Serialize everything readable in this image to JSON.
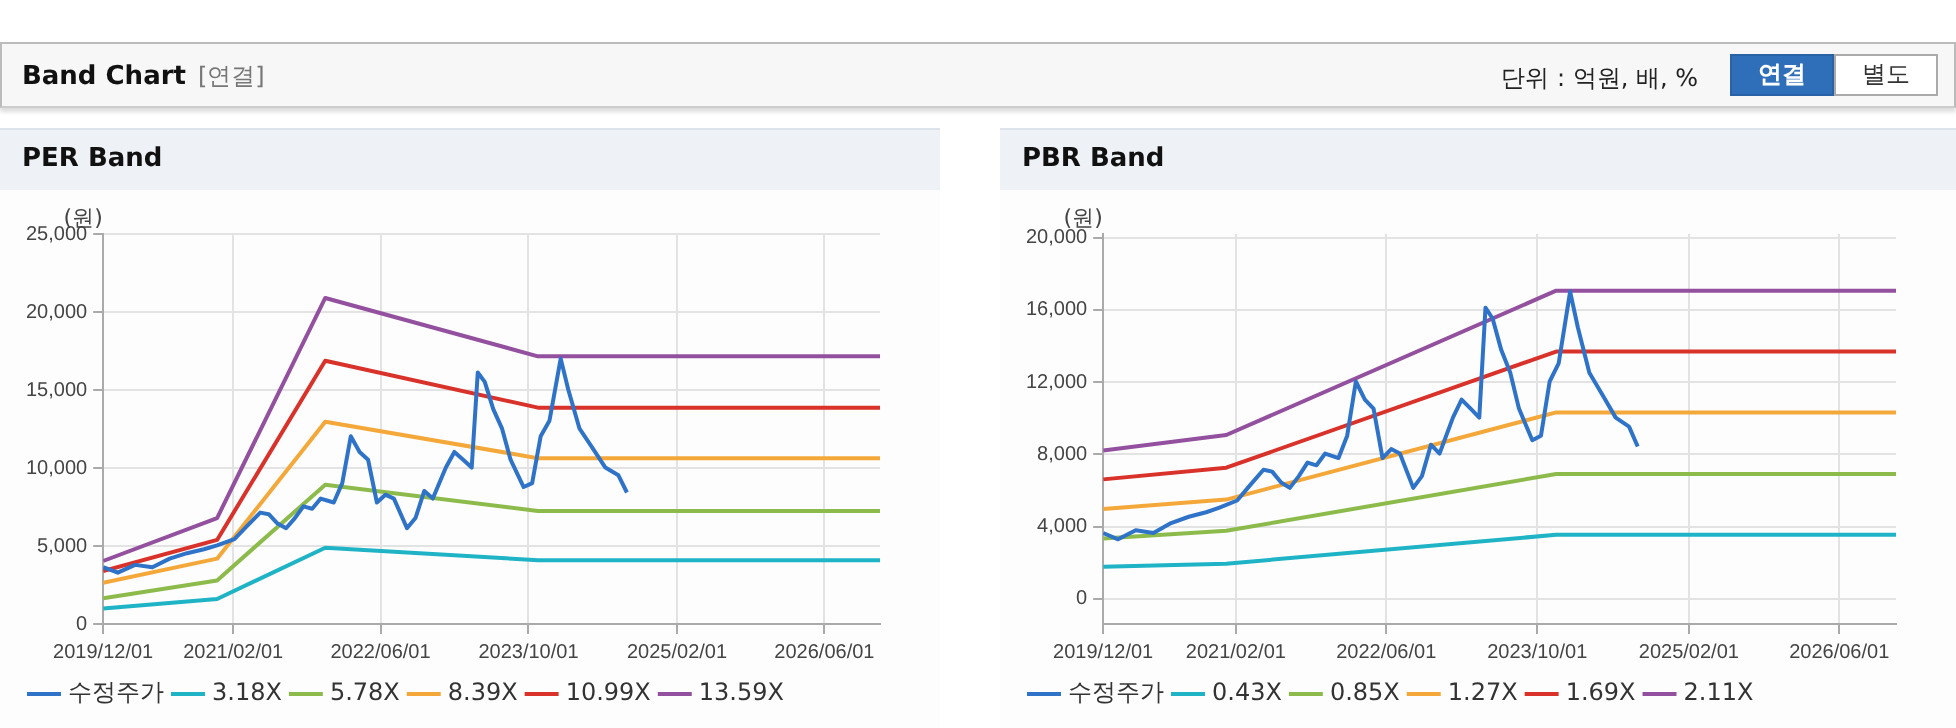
{
  "chart_data": [
    {
      "type": "line",
      "title": "PER Band",
      "ylabel": "(원)",
      "annotations": [
        "Band Chart",
        "[연결]",
        "단위 : 억원, 배, %",
        "연결",
        "별도"
      ],
      "xlim": [
        "2019-12-01",
        "2026-12-01"
      ],
      "xticks": [
        {
          "value": "2019-12-01",
          "label": "2019/12/01"
        },
        {
          "value": "2021-02-01",
          "label": "2021/02/01"
        },
        {
          "value": "2022-06-01",
          "label": "2022/06/01"
        },
        {
          "value": "2023-10-01",
          "label": "2023/10/01"
        },
        {
          "value": "2025-02-01",
          "label": "2025/02/01"
        },
        {
          "value": "2026-06-01",
          "label": "2026/06/01"
        }
      ],
      "ylim": [
        0,
        25000
      ],
      "yticks": [
        {
          "value": 0,
          "label": "0"
        },
        {
          "value": 5000,
          "label": "5,000"
        },
        {
          "value": 10000,
          "label": "10,000"
        },
        {
          "value": 15000,
          "label": "15,000"
        },
        {
          "value": 20000,
          "label": "20,000"
        },
        {
          "value": 25000,
          "label": "25,000"
        }
      ],
      "grid": true,
      "legend": "bottom",
      "marker": "none",
      "line_style": "solid",
      "series": [
        {
          "name": "수정주가",
          "color": "#2f73c9",
          "x": [
            "2019-12-01",
            "2020-01-18",
            "2020-03-15",
            "2020-05-11",
            "2020-07-07",
            "2020-09-02",
            "2020-10-28",
            "2020-12-10",
            "2021-02-05",
            "2021-03-19",
            "2021-05-01",
            "2021-05-29",
            "2021-06-27",
            "2021-07-25",
            "2021-08-23",
            "2021-09-20",
            "2021-10-19",
            "2021-11-16",
            "2021-12-29",
            "2022-01-26",
            "2022-02-23",
            "2022-03-24",
            "2022-04-21",
            "2022-05-20",
            "2022-06-17",
            "2022-07-15",
            "2022-08-27",
            "2022-09-24",
            "2022-10-23",
            "2022-11-20",
            "2023-01-02",
            "2023-01-30",
            "2023-02-28",
            "2023-03-28",
            "2023-04-17",
            "2023-05-10",
            "2023-06-07",
            "2023-07-06",
            "2023-08-03",
            "2023-09-15",
            "2023-10-13",
            "2023-11-10",
            "2023-12-09",
            "2024-01-15",
            "2024-02-09",
            "2024-03-17",
            "2024-04-29",
            "2024-06-10",
            "2024-07-23",
            "2024-08-20"
          ],
          "values": [
            3640,
            3290,
            3790,
            3640,
            4190,
            4540,
            4790,
            5040,
            5440,
            6290,
            7140,
            7040,
            6440,
            6140,
            6790,
            7540,
            7390,
            8040,
            7790,
            9030,
            12030,
            11030,
            10530,
            7790,
            8290,
            8040,
            6140,
            6790,
            8530,
            8040,
            10030,
            11030,
            10530,
            10030,
            16120,
            15520,
            13770,
            12520,
            10530,
            8780,
            9030,
            12030,
            13030,
            17010,
            15020,
            12520,
            11270,
            10030,
            9530,
            8430
          ]
        },
        {
          "name": "3.18X",
          "color": "#1fb3c6",
          "x": [
            "2019-12-01",
            "2020-12-10",
            "2021-12-01",
            "2023-11-01",
            "2026-12-01"
          ],
          "values": [
            1000,
            1600,
            4890,
            4090,
            4090
          ]
        },
        {
          "name": "5.78X",
          "color": "#8cbb4b",
          "x": [
            "2019-12-01",
            "2020-12-10",
            "2021-12-01",
            "2023-11-01",
            "2026-12-01"
          ],
          "values": [
            1650,
            2790,
            8930,
            7240,
            7240
          ]
        },
        {
          "name": "8.39X",
          "color": "#f4a83a",
          "x": [
            "2019-12-01",
            "2020-12-10",
            "2021-12-01",
            "2023-11-01",
            "2026-12-01"
          ],
          "values": [
            2640,
            4190,
            12970,
            10630,
            10630
          ]
        },
        {
          "name": "10.99X",
          "color": "#d8322a",
          "x": [
            "2019-12-01",
            "2020-12-10",
            "2021-12-01",
            "2023-11-01",
            "2026-12-01"
          ],
          "values": [
            3390,
            5390,
            16870,
            13870,
            13870
          ]
        },
        {
          "name": "13.59X",
          "color": "#93509e",
          "x": [
            "2019-12-01",
            "2020-12-10",
            "2021-12-01",
            "2023-11-01",
            "2026-12-01"
          ],
          "values": [
            4040,
            6790,
            20900,
            17160,
            17160
          ]
        }
      ]
    },
    {
      "type": "line",
      "title": "PBR Band",
      "ylabel": "(원)",
      "xlim": [
        "2019-12-01",
        "2026-12-01"
      ],
      "xticks": [
        {
          "value": "2019-12-01",
          "label": "2019/12/01"
        },
        {
          "value": "2021-02-01",
          "label": "2021/02/01"
        },
        {
          "value": "2022-06-01",
          "label": "2022/06/01"
        },
        {
          "value": "2023-10-01",
          "label": "2023/10/01"
        },
        {
          "value": "2025-02-01",
          "label": "2025/02/01"
        },
        {
          "value": "2026-06-01",
          "label": "2026/06/01"
        }
      ],
      "ylim": [
        -1400,
        20200
      ],
      "yticks": [
        {
          "value": 0,
          "label": "0"
        },
        {
          "value": 4000,
          "label": "4,000"
        },
        {
          "value": 8000,
          "label": "8,000"
        },
        {
          "value": 12000,
          "label": "12,000"
        },
        {
          "value": 16000,
          "label": "16,000"
        },
        {
          "value": 20000,
          "label": "20,000"
        }
      ],
      "grid": true,
      "legend": "bottom",
      "marker": "none",
      "line_style": "solid",
      "series": [
        {
          "name": "수정주가",
          "color": "#2f73c9",
          "x": [
            "2019-12-01",
            "2020-01-18",
            "2020-03-15",
            "2020-05-11",
            "2020-07-07",
            "2020-09-02",
            "2020-10-28",
            "2020-12-10",
            "2021-02-05",
            "2021-03-19",
            "2021-05-01",
            "2021-05-29",
            "2021-06-27",
            "2021-07-25",
            "2021-08-23",
            "2021-09-20",
            "2021-10-19",
            "2021-11-16",
            "2021-12-29",
            "2022-01-26",
            "2022-02-23",
            "2022-03-24",
            "2022-04-21",
            "2022-05-20",
            "2022-06-17",
            "2022-07-15",
            "2022-08-27",
            "2022-09-24",
            "2022-10-23",
            "2022-11-20",
            "2023-01-02",
            "2023-01-30",
            "2023-02-28",
            "2023-03-28",
            "2023-04-17",
            "2023-05-10",
            "2023-06-07",
            "2023-07-06",
            "2023-08-03",
            "2023-09-15",
            "2023-10-13",
            "2023-11-10",
            "2023-12-09",
            "2024-01-15",
            "2024-02-09",
            "2024-03-17",
            "2024-04-29",
            "2024-06-10",
            "2024-07-23",
            "2024-08-20"
          ],
          "values": [
            3640,
            3290,
            3790,
            3640,
            4190,
            4540,
            4790,
            5040,
            5440,
            6290,
            7140,
            7040,
            6440,
            6140,
            6790,
            7540,
            7390,
            8040,
            7790,
            9030,
            12030,
            11030,
            10530,
            7790,
            8290,
            8040,
            6140,
            6790,
            8530,
            8040,
            10030,
            11030,
            10530,
            10030,
            16120,
            15520,
            13770,
            12520,
            10530,
            8780,
            9030,
            12030,
            13030,
            17010,
            15020,
            12520,
            11270,
            10030,
            9530,
            8430
          ]
        },
        {
          "name": "0.43X",
          "color": "#1fb3c6",
          "x": [
            "2019-12-01",
            "2021-01-01",
            "2023-12-01",
            "2026-12-01"
          ],
          "values": [
            1770,
            1940,
            3540,
            3540
          ]
        },
        {
          "name": "0.85X",
          "color": "#8cbb4b",
          "x": [
            "2019-12-01",
            "2021-01-01",
            "2023-12-01",
            "2026-12-01"
          ],
          "values": [
            3330,
            3760,
            6910,
            6910
          ]
        },
        {
          "name": "1.27X",
          "color": "#f4a83a",
          "x": [
            "2019-12-01",
            "2021-01-01",
            "2023-12-01",
            "2026-12-01"
          ],
          "values": [
            4970,
            5490,
            10320,
            10320
          ]
        },
        {
          "name": "1.69X",
          "color": "#d8322a",
          "x": [
            "2019-12-01",
            "2021-01-01",
            "2023-12-01",
            "2026-12-01"
          ],
          "values": [
            6610,
            7260,
            13690,
            13690
          ]
        },
        {
          "name": "2.11X",
          "color": "#93509e",
          "x": [
            "2019-12-01",
            "2021-01-01",
            "2023-12-01",
            "2026-12-01"
          ],
          "values": [
            8210,
            9070,
            17060,
            17060
          ]
        }
      ]
    }
  ]
}
